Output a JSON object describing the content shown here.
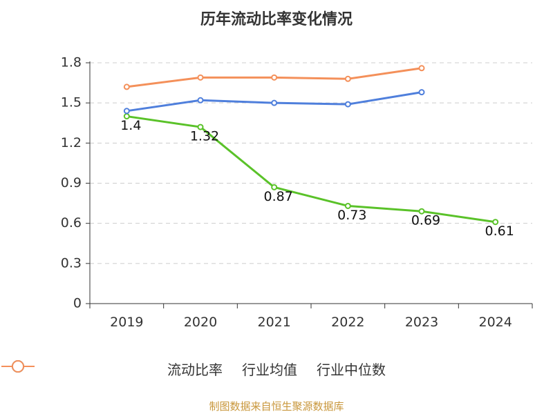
{
  "chart_data": {
    "type": "line",
    "title": "历年流动比率变化情况",
    "categories": [
      "2019",
      "2020",
      "2021",
      "2022",
      "2023",
      "2024"
    ],
    "y_ticks": [
      "0",
      "0.3",
      "0.6",
      "0.9",
      "1.2",
      "1.5",
      "1.8"
    ],
    "ylim": [
      0,
      1.8
    ],
    "grid": true,
    "legend_position": "bottom",
    "series": [
      {
        "name": "流动比率",
        "color": "#5ac229",
        "values": [
          1.4,
          1.32,
          0.87,
          0.73,
          0.69,
          0.61
        ],
        "labels": [
          "1.4",
          "1.32",
          "0.87",
          "0.73",
          "0.69",
          "0.61"
        ]
      },
      {
        "name": "行业均值",
        "color": "#4f7fdc",
        "values": [
          1.44,
          1.52,
          1.5,
          1.49,
          1.58,
          null
        ]
      },
      {
        "name": "行业中位数",
        "color": "#f4905a",
        "values": [
          1.62,
          1.69,
          1.69,
          1.68,
          1.76,
          null
        ]
      }
    ],
    "source": "制图数据来自恒生聚源数据库"
  }
}
